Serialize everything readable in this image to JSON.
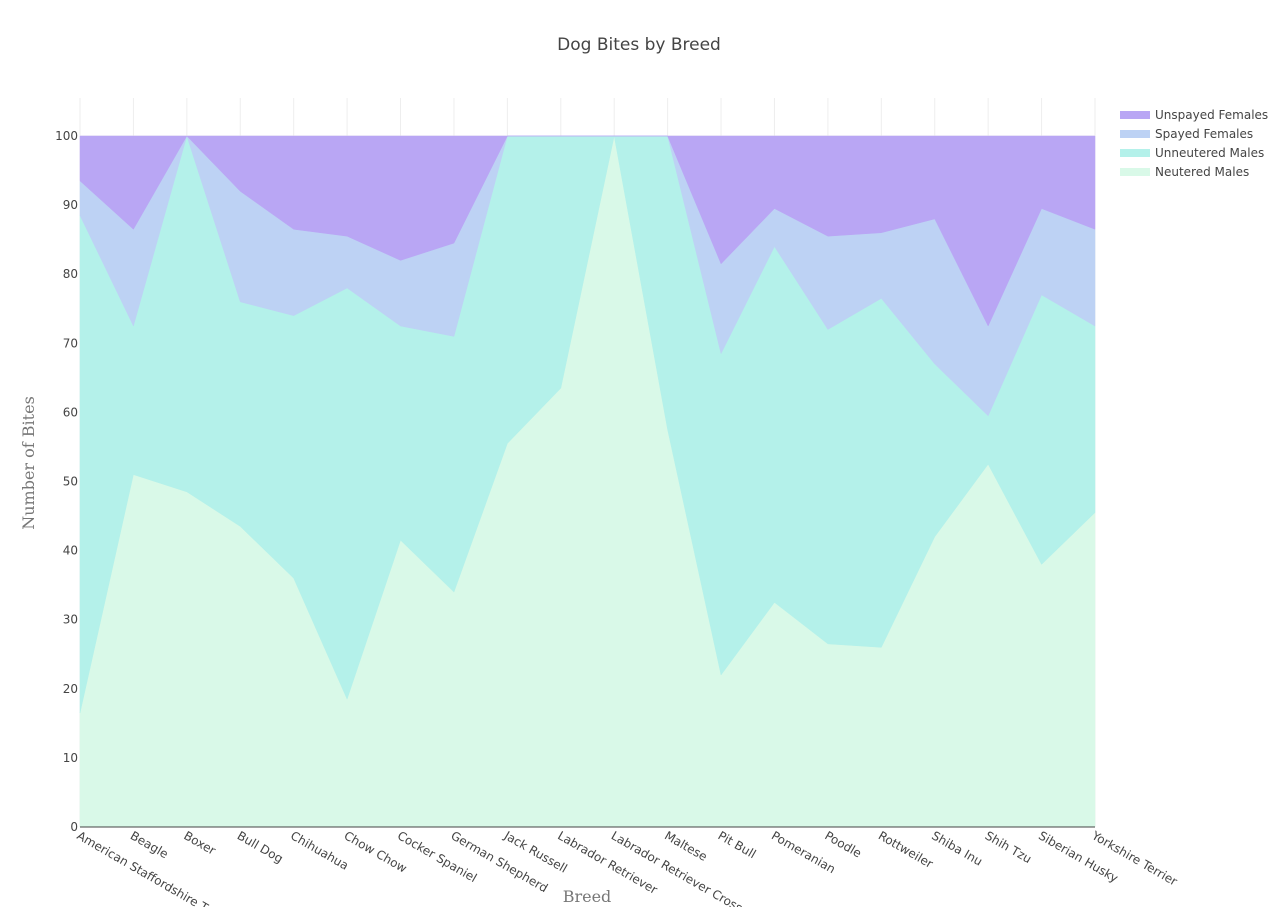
{
  "chart_data": {
    "type": "area",
    "stacked": "percent",
    "title": "Dog Bites by Breed",
    "xlabel": "Breed",
    "ylabel": "Number of Bites",
    "ylim": [
      0,
      100
    ],
    "yticks": [
      0,
      10,
      20,
      30,
      40,
      50,
      60,
      70,
      80,
      90,
      100
    ],
    "grid": true,
    "legend_position": "top-right",
    "categories": [
      "American Staffordshire Terrier",
      "Beagle",
      "Boxer",
      "Bull Dog",
      "Chihuahua",
      "Chow Chow",
      "Cocker Spaniel",
      "German Shepherd",
      "Jack Russell",
      "Labrador Retriever",
      "Labrador Retriever Cross",
      "Maltese",
      "Pit Bull",
      "Pomeranian",
      "Poodle",
      "Rottweiler",
      "Shiba Inu",
      "Shih Tzu",
      "Siberian Husky",
      "Yorkshire Terrier"
    ],
    "series": [
      {
        "name": "Neutered Males",
        "color": "#d9f9e8",
        "values": [
          16.5,
          51,
          48.5,
          43.5,
          36,
          18.5,
          41.5,
          34,
          55.5,
          63.5,
          100,
          57.5,
          22,
          32.5,
          26.5,
          26,
          42,
          52.5,
          38,
          45.5
        ]
      },
      {
        "name": "Unneutered Males",
        "color": "#b4f1ea",
        "values": [
          72,
          21.5,
          51.5,
          32.5,
          38,
          59.5,
          31,
          37,
          44.5,
          36.5,
          0,
          42.5,
          46.5,
          51.5,
          45.5,
          50.5,
          25,
          7,
          39,
          27
        ]
      },
      {
        "name": "Spayed Females",
        "color": "#bdd2f4",
        "values": [
          5,
          14,
          0,
          16,
          12.5,
          7.5,
          9.5,
          13.5,
          0,
          0,
          0,
          0,
          13,
          5.5,
          13.5,
          9.5,
          21,
          13,
          12.5,
          14
        ]
      },
      {
        "name": "Unspayed Females",
        "color": "#b9a6f4",
        "values": [
          6.5,
          13.5,
          0,
          8,
          13.5,
          14.5,
          18,
          15.5,
          0,
          0,
          0,
          0,
          18.5,
          10.5,
          14.5,
          14,
          12,
          27.5,
          10.5,
          13.5
        ]
      }
    ]
  }
}
